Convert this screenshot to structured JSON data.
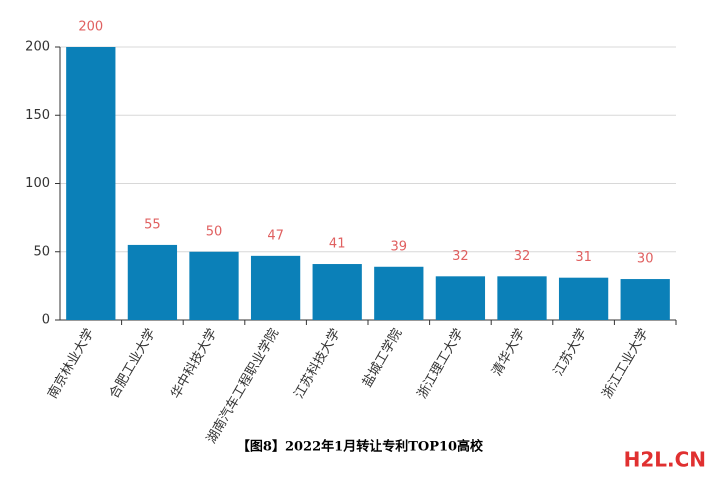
{
  "chart_data": {
    "type": "bar",
    "caption": "【图8】2022年1月转让专利TOP10高校",
    "watermark": "H2L.CN",
    "categories": [
      "南京林业大学",
      "合肥工业大学",
      "华中科技大学",
      "湖南汽车工程职业学院",
      "江苏科技大学",
      "盐城工学院",
      "浙江理工大学",
      "清华大学",
      "江苏大学",
      "浙江工业大学"
    ],
    "values": [
      200,
      55,
      50,
      47,
      41,
      39,
      32,
      32,
      31,
      30
    ],
    "color": "#0b80b8",
    "label_color": "#e06060",
    "ylim": [
      0,
      200
    ],
    "yticks": [
      0,
      50,
      100,
      150,
      200
    ],
    "grid": true
  }
}
